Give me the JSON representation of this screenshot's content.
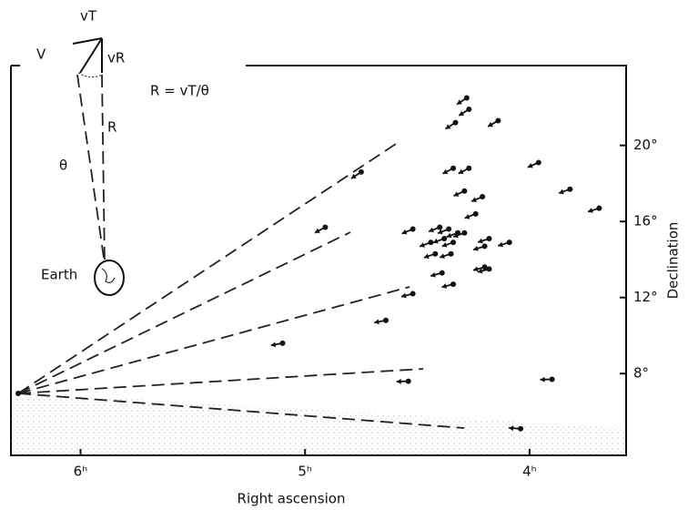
{
  "chart_data": {
    "type": "scatter",
    "x_label": "Right ascension",
    "y_label": "Declination",
    "x": [
      4.28,
      4.27,
      4.33,
      4.14,
      4.75,
      4.34,
      4.27,
      3.96,
      3.82,
      3.69,
      4.29,
      4.21,
      4.24,
      4.91,
      4.52,
      4.4,
      4.36,
      4.32,
      4.29,
      4.44,
      4.38,
      4.34,
      4.18,
      4.09,
      4.2,
      4.42,
      4.35,
      4.39,
      4.2,
      4.18,
      4.34,
      4.52,
      4.64,
      5.1,
      4.54,
      3.9,
      4.04
    ],
    "values": [
      22.5,
      21.9,
      21.2,
      21.3,
      18.6,
      18.8,
      18.8,
      19.1,
      17.7,
      16.7,
      17.6,
      17.3,
      16.4,
      15.7,
      15.6,
      15.7,
      15.6,
      15.4,
      15.4,
      14.9,
      15.1,
      14.9,
      15.1,
      14.9,
      14.7,
      14.3,
      14.3,
      13.3,
      13.6,
      13.5,
      12.7,
      12.2,
      10.8,
      9.6,
      7.6,
      7.7,
      5.1
    ],
    "color": "#111111",
    "xlim": [
      6.31,
      3.57
    ],
    "ylim": [
      3.7,
      24.2
    ],
    "xticks": [
      {
        "value": 6,
        "label": "6ʰ"
      },
      {
        "value": 5,
        "label": "5ʰ"
      },
      {
        "value": 4,
        "label": "4ʰ"
      }
    ],
    "yticks": [
      {
        "value": 8,
        "label": "8°"
      },
      {
        "value": 12,
        "label": "12°"
      },
      {
        "value": 16,
        "label": "16°"
      },
      {
        "value": 20,
        "label": "20°"
      }
    ],
    "annotations": [
      "vT",
      "V",
      "vR",
      "R = vT/θ",
      "R",
      "θ",
      "Earth"
    ]
  }
}
